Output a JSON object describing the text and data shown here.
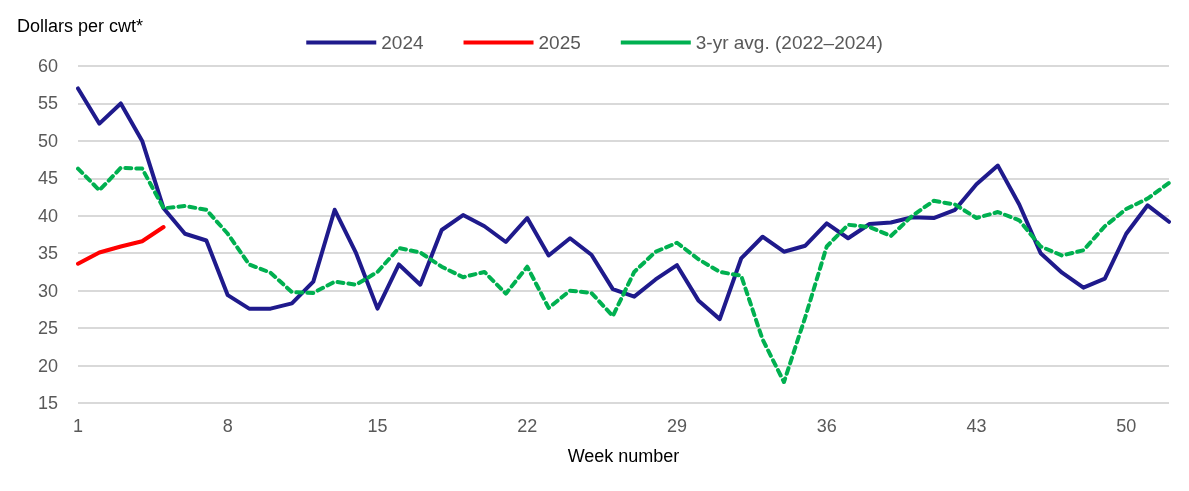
{
  "chart_data": {
    "type": "line",
    "ylabel": "Dollars per cwt*",
    "xlabel": "Week number",
    "x": [
      1,
      2,
      3,
      4,
      5,
      6,
      7,
      8,
      9,
      10,
      11,
      12,
      13,
      14,
      15,
      16,
      17,
      18,
      19,
      20,
      21,
      22,
      23,
      24,
      25,
      26,
      27,
      28,
      29,
      30,
      31,
      32,
      33,
      34,
      35,
      36,
      37,
      38,
      39,
      40,
      41,
      42,
      43,
      44,
      45,
      46,
      47,
      48,
      49,
      50,
      51,
      52
    ],
    "series": [
      {
        "name": "2024",
        "color": "#1f1a8c",
        "line_style": "solid",
        "values": [
          57,
          52.3,
          55,
          50,
          41,
          37.6,
          36.7,
          29.4,
          27.6,
          27.6,
          28.3,
          31.2,
          40.8,
          35,
          27.6,
          33.5,
          30.8,
          38.1,
          40.1,
          38.6,
          36.5,
          39.7,
          34.7,
          37,
          34.8,
          30.2,
          29.2,
          31.5,
          33.4,
          28.7,
          26.2,
          34.3,
          37.2,
          35.2,
          36,
          39,
          37,
          38.9,
          39.1,
          39.8,
          39.7,
          40.8,
          44.2,
          46.7,
          41.5,
          35,
          32.4,
          30.4,
          31.6,
          37.6,
          41.4,
          39.2
        ]
      },
      {
        "name": "2025",
        "color": "#ff0000",
        "line_style": "solid",
        "values": [
          33.6,
          35.1,
          35.9,
          36.6,
          38.5,
          null,
          null,
          null,
          null,
          null,
          null,
          null,
          null,
          null,
          null,
          null,
          null,
          null,
          null,
          null,
          null,
          null,
          null,
          null,
          null,
          null,
          null,
          null,
          null,
          null,
          null,
          null,
          null,
          null,
          null,
          null,
          null,
          null,
          null,
          null,
          null,
          null,
          null,
          null,
          null,
          null,
          null,
          null,
          null,
          null,
          null,
          null
        ]
      },
      {
        "name": "3-yr avg. (2022–2024)",
        "color": "#00b050",
        "line_style": "dashed",
        "values": [
          46.3,
          43.4,
          46.4,
          46.3,
          41,
          41.3,
          40.8,
          37.6,
          33.5,
          32.4,
          29.8,
          29.7,
          31.2,
          30.8,
          32.5,
          35.7,
          35.1,
          33.2,
          31.8,
          32.5,
          29.6,
          33.2,
          27.7,
          30,
          29.7,
          26.6,
          32.5,
          35.2,
          36.4,
          34.2,
          32.5,
          32,
          23.5,
          17.8,
          26.5,
          35.9,
          38.8,
          38.5,
          37.3,
          40,
          42,
          41.5,
          39.7,
          40.5,
          39.4,
          35.9,
          34.7,
          35.4,
          38.6,
          40.9,
          42.3,
          44.4
        ]
      }
    ],
    "xlim": [
      1,
      52
    ],
    "xticks": [
      1,
      8,
      15,
      22,
      29,
      36,
      43,
      50
    ],
    "ylim": [
      15,
      60
    ],
    "yticks": [
      15,
      20,
      25,
      30,
      35,
      40,
      45,
      50,
      55,
      60
    ],
    "grid": "y",
    "legend": "top",
    "marker": "none"
  }
}
